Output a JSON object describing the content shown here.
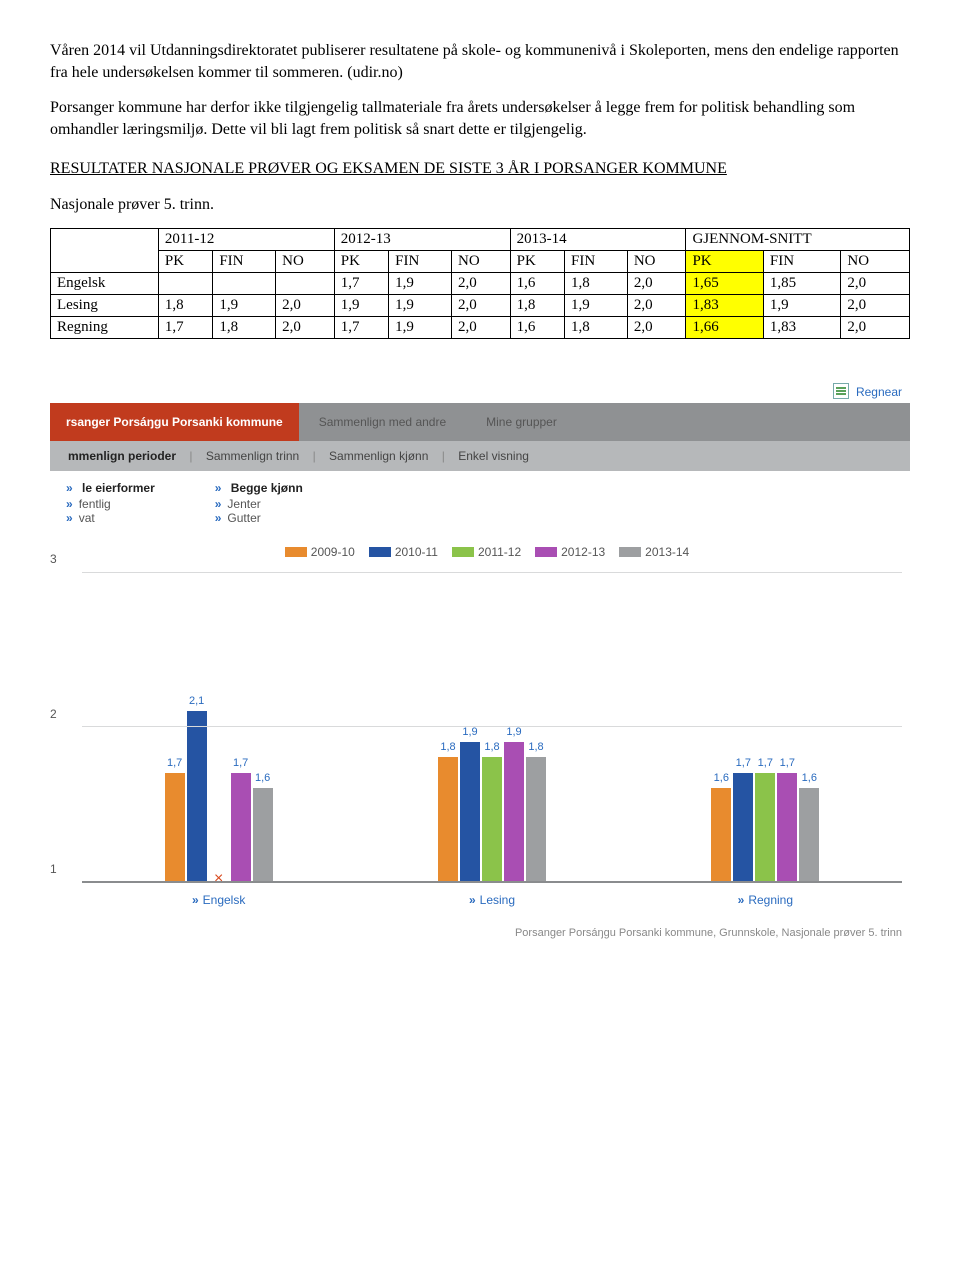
{
  "paragraphs": {
    "p1": "Våren 2014 vil Utdanningsdirektoratet publiserer resultatene på skole- og kommunenivå i Skoleporten, mens den endelige rapporten fra hele undersøkelsen kommer til sommeren. (udir.no)",
    "p2": "Porsanger kommune har derfor ikke tilgjengelig tallmateriale fra årets undersøkelser å legge frem for politisk behandling som omhandler læringsmiljø. Dette vil bli lagt frem politisk så snart dette er tilgjengelig.",
    "section_title": "RESULTATER NASJONALE PRØVER OG EKSAMEN DE SISTE 3 ÅR I PORSANGER KOMMUNE",
    "subhead": "Nasjonale prøver 5. trinn."
  },
  "table": {
    "year_headers": [
      "2011-12",
      "2012-13",
      "2013-14",
      "GJENNOM-SNITT"
    ],
    "sub_headers": [
      "PK",
      "FIN",
      "NO"
    ],
    "rows": [
      {
        "label": "Engelsk",
        "cells": [
          "",
          "",
          "",
          "1,7",
          "1,9",
          "2,0",
          "1,6",
          "1,8",
          "2,0",
          "1,65",
          "1,85",
          "2,0"
        ]
      },
      {
        "label": "Lesing",
        "cells": [
          "1,8",
          "1,9",
          "2,0",
          "1,9",
          "1,9",
          "2,0",
          "1,8",
          "1,9",
          "2,0",
          "1,83",
          "1,9",
          "2,0"
        ]
      },
      {
        "label": "Regning",
        "cells": [
          "1,7",
          "1,8",
          "2,0",
          "1,7",
          "1,9",
          "2,0",
          "1,6",
          "1,8",
          "2,0",
          "1,66",
          "1,83",
          "2,0"
        ]
      }
    ],
    "highlight_cols": [
      9,
      10
    ]
  },
  "ui": {
    "export_label": "Regnear",
    "tabs": {
      "active": "rsanger Porsáŋgu Porsanki kommune",
      "others": [
        "Sammenlign med andre",
        "Mine grupper"
      ]
    },
    "subtabs": {
      "selected": "mmenlign perioder",
      "rest": [
        "Sammenlign trinn",
        "Sammenlign kjønn",
        "Enkel visning"
      ]
    },
    "filters": {
      "col1_head": "le eierformer",
      "col1_items": [
        "fentlig",
        "vat"
      ],
      "col2_head": "Begge kjønn",
      "col2_items": [
        "Jenter",
        "Gutter"
      ]
    }
  },
  "chart": {
    "legend": [
      {
        "label": "2009-10",
        "color": "#e88b2e"
      },
      {
        "label": "2010-11",
        "color": "#2554a3"
      },
      {
        "label": "2011-12",
        "color": "#8bc34a"
      },
      {
        "label": "2012-13",
        "color": "#a94eb3"
      },
      {
        "label": "2013-14",
        "color": "#9d9fa1"
      }
    ],
    "y": {
      "min": 1,
      "max": 3,
      "ticks": [
        1,
        2,
        3
      ]
    },
    "groups": [
      {
        "name": "Engelsk",
        "bars": [
          {
            "series": 0,
            "value": 1.7,
            "label": "1,7"
          },
          {
            "series": 1,
            "value": 2.1,
            "label": "2,1"
          },
          {
            "series": 3,
            "value": 1.7,
            "label": "1,7"
          },
          {
            "series": 4,
            "value": 1.6,
            "label": "1,6"
          }
        ],
        "marker_x_after": 1
      },
      {
        "name": "Lesing",
        "bars": [
          {
            "series": 0,
            "value": 1.8,
            "label": "1,8"
          },
          {
            "series": 1,
            "value": 1.9,
            "label": "1,9"
          },
          {
            "series": 2,
            "value": 1.8,
            "label": "1,8"
          },
          {
            "series": 3,
            "value": 1.9,
            "label": "1,9"
          },
          {
            "series": 4,
            "value": 1.8,
            "label": "1,8"
          }
        ]
      },
      {
        "name": "Regning",
        "bars": [
          {
            "series": 0,
            "value": 1.6,
            "label": "1,6"
          },
          {
            "series": 1,
            "value": 1.7,
            "label": "1,7"
          },
          {
            "series": 2,
            "value": 1.7,
            "label": "1,7"
          },
          {
            "series": 3,
            "value": 1.7,
            "label": "1,7"
          },
          {
            "series": 4,
            "value": 1.6,
            "label": "1,6"
          }
        ]
      }
    ],
    "caption": "Porsanger Porsáŋgu Porsanki kommune, Grunnskole, Nasjonale prøver 5. trinn"
  }
}
